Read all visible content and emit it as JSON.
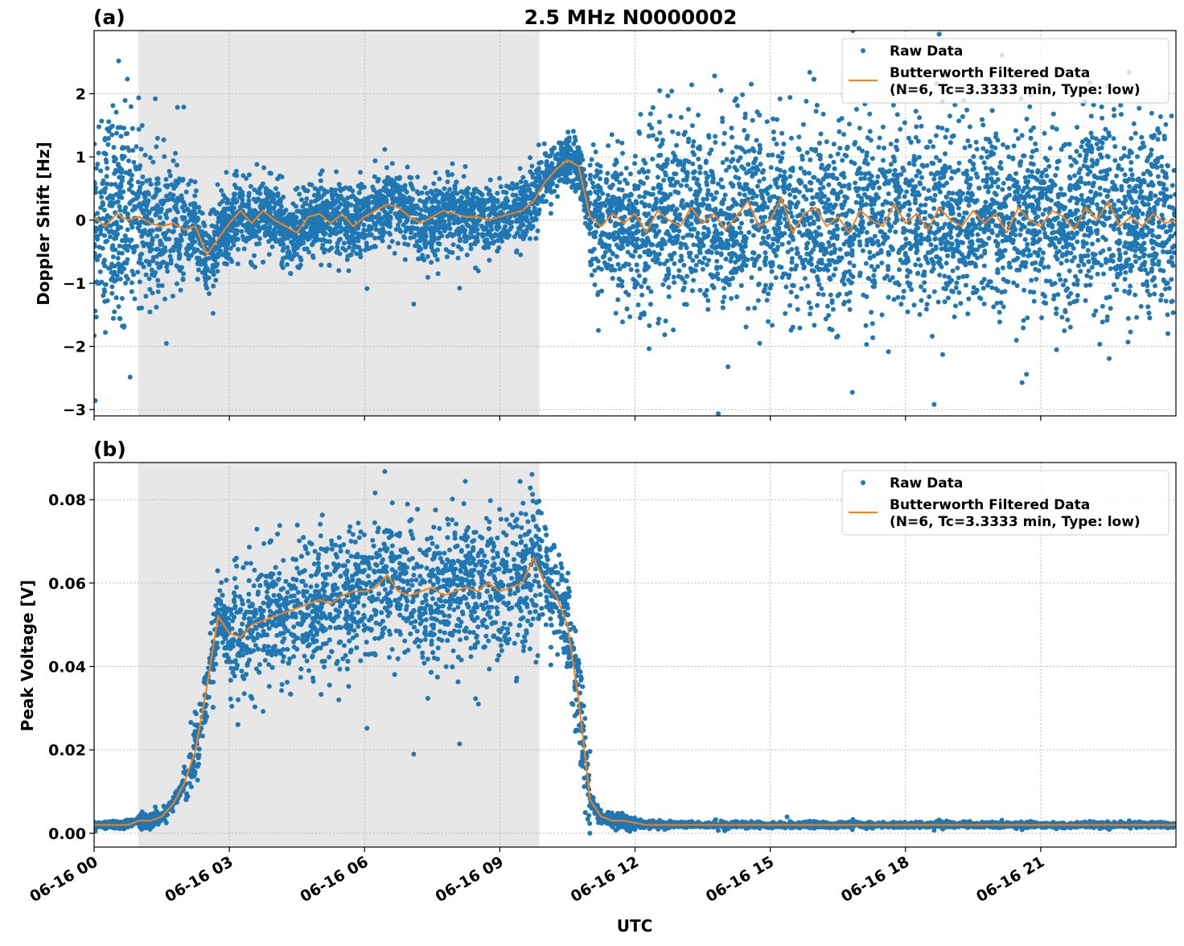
{
  "chart_data": [
    {
      "type": "scatter",
      "panel_label": "(a)",
      "title": "2.5 MHz N0000002",
      "xlabel": "",
      "ylabel": "Doppler Shift [Hz]",
      "xlim_hours": [
        0,
        24
      ],
      "ylim": [
        -3.1,
        3.0
      ],
      "yticks": [
        -3,
        -2,
        -1,
        0,
        1,
        2
      ],
      "ytick_labels": [
        "−3",
        "−2",
        "−1",
        "0",
        "1",
        "2"
      ],
      "grid": true,
      "shaded_region_hours": [
        0.98,
        9.88
      ],
      "shade_color": "#e7e7e7",
      "legend_placement": "top-right",
      "series": [
        {
          "name": "Raw Data",
          "kind": "scatter",
          "color": "#1f77b4",
          "raw_spread_per_hour": [
            0.75,
            0.55,
            0.3,
            0.3,
            0.28,
            0.28,
            0.28,
            0.28,
            0.25,
            0.22,
            0.2,
            0.55,
            0.7,
            0.7,
            0.7,
            0.7,
            0.7,
            0.7,
            0.7,
            0.7,
            0.7,
            0.7,
            0.7,
            0.7
          ]
        },
        {
          "name": "Butterworth Filtered Data",
          "name_line2": "(N=6, Tc=3.3333 min, Type: low)",
          "kind": "line",
          "color": "#ff7f0e",
          "x_step_hours": 0.25,
          "values": [
            0.05,
            -0.1,
            0.1,
            0.0,
            0.05,
            -0.05,
            -0.1,
            -0.05,
            -0.15,
            -0.1,
            -0.55,
            -0.3,
            -0.05,
            0.15,
            -0.05,
            0.15,
            0.0,
            -0.1,
            -0.2,
            0.05,
            0.1,
            -0.05,
            0.1,
            -0.1,
            0.05,
            0.15,
            0.25,
            0.2,
            0.05,
            -0.05,
            0.05,
            0.15,
            0.1,
            0.05,
            0.05,
            0.0,
            0.05,
            0.1,
            0.15,
            0.3,
            0.6,
            0.8,
            0.95,
            0.85,
            0.05,
            -0.1,
            0.1,
            -0.05,
            0.1,
            -0.2,
            0.15,
            0.0,
            -0.1,
            0.2,
            -0.05,
            0.1,
            -0.15,
            0.05,
            0.3,
            -0.1,
            0.0,
            0.35,
            -0.2,
            0.1,
            0.2,
            -0.1,
            0.05,
            -0.2,
            0.15,
            0.0,
            -0.1,
            0.25,
            -0.05,
            0.1,
            -0.15,
            0.2,
            0.0,
            -0.1,
            0.15,
            -0.05,
            0.1,
            -0.2,
            0.2,
            0.0,
            -0.1,
            0.15,
            0.05,
            -0.15,
            0.2,
            0.0,
            0.3,
            -0.1,
            0.05,
            -0.1,
            0.1,
            -0.05,
            0.0
          ]
        }
      ]
    },
    {
      "type": "scatter",
      "panel_label": "(b)",
      "xlabel": "UTC",
      "ylabel": "Peak Voltage [V]",
      "xlim_hours": [
        0,
        24
      ],
      "xtick_labels": [
        "06-16 00",
        "06-16 03",
        "06-16 06",
        "06-16 09",
        "06-16 12",
        "06-16 15",
        "06-16 18",
        "06-16 21"
      ],
      "ylim": [
        -0.0033,
        0.0889
      ],
      "yticks": [
        0,
        0.02,
        0.04,
        0.06,
        0.08
      ],
      "ytick_labels": [
        "0.00",
        "0.02",
        "0.04",
        "0.06",
        "0.08"
      ],
      "grid": true,
      "shaded_region_hours": [
        0.98,
        9.88
      ],
      "shade_color": "#e7e7e7",
      "legend_placement": "top-right",
      "series": [
        {
          "name": "Raw Data",
          "kind": "scatter",
          "color": "#1f77b4",
          "raw_spread_per_hour": [
            0.0004,
            0.0008,
            0.004,
            0.008,
            0.008,
            0.008,
            0.008,
            0.008,
            0.008,
            0.008,
            0.006,
            0.0008,
            0.0004,
            0.0003,
            0.0003,
            0.0003,
            0.0003,
            0.0003,
            0.0003,
            0.0003,
            0.0003,
            0.0003,
            0.0003,
            0.0003
          ]
        },
        {
          "name": "Butterworth Filtered Data",
          "name_line2": "(N=6, Tc=3.3333 min, Type: low)",
          "kind": "line",
          "color": "#ff7f0e",
          "x_step_hours": 0.25,
          "values": [
            0.002,
            0.002,
            0.002,
            0.002,
            0.003,
            0.003,
            0.004,
            0.007,
            0.012,
            0.02,
            0.035,
            0.052,
            0.048,
            0.047,
            0.05,
            0.051,
            0.052,
            0.053,
            0.054,
            0.055,
            0.056,
            0.055,
            0.057,
            0.058,
            0.058,
            0.059,
            0.062,
            0.058,
            0.057,
            0.058,
            0.059,
            0.057,
            0.058,
            0.059,
            0.058,
            0.06,
            0.058,
            0.059,
            0.06,
            0.066,
            0.06,
            0.057,
            0.05,
            0.032,
            0.008,
            0.004,
            0.003,
            0.003,
            0.0025,
            0.002,
            0.002,
            0.002,
            0.002,
            0.002,
            0.002,
            0.002,
            0.002,
            0.002,
            0.002,
            0.002,
            0.002,
            0.002,
            0.002,
            0.002,
            0.002,
            0.002,
            0.002,
            0.002,
            0.002,
            0.002,
            0.002,
            0.002,
            0.002,
            0.002,
            0.002,
            0.002,
            0.002,
            0.002,
            0.002,
            0.002,
            0.002,
            0.002,
            0.002,
            0.002,
            0.002,
            0.002,
            0.002,
            0.002,
            0.002,
            0.002,
            0.002,
            0.002,
            0.002,
            0.002,
            0.002,
            0.002,
            0.002
          ]
        }
      ]
    }
  ]
}
